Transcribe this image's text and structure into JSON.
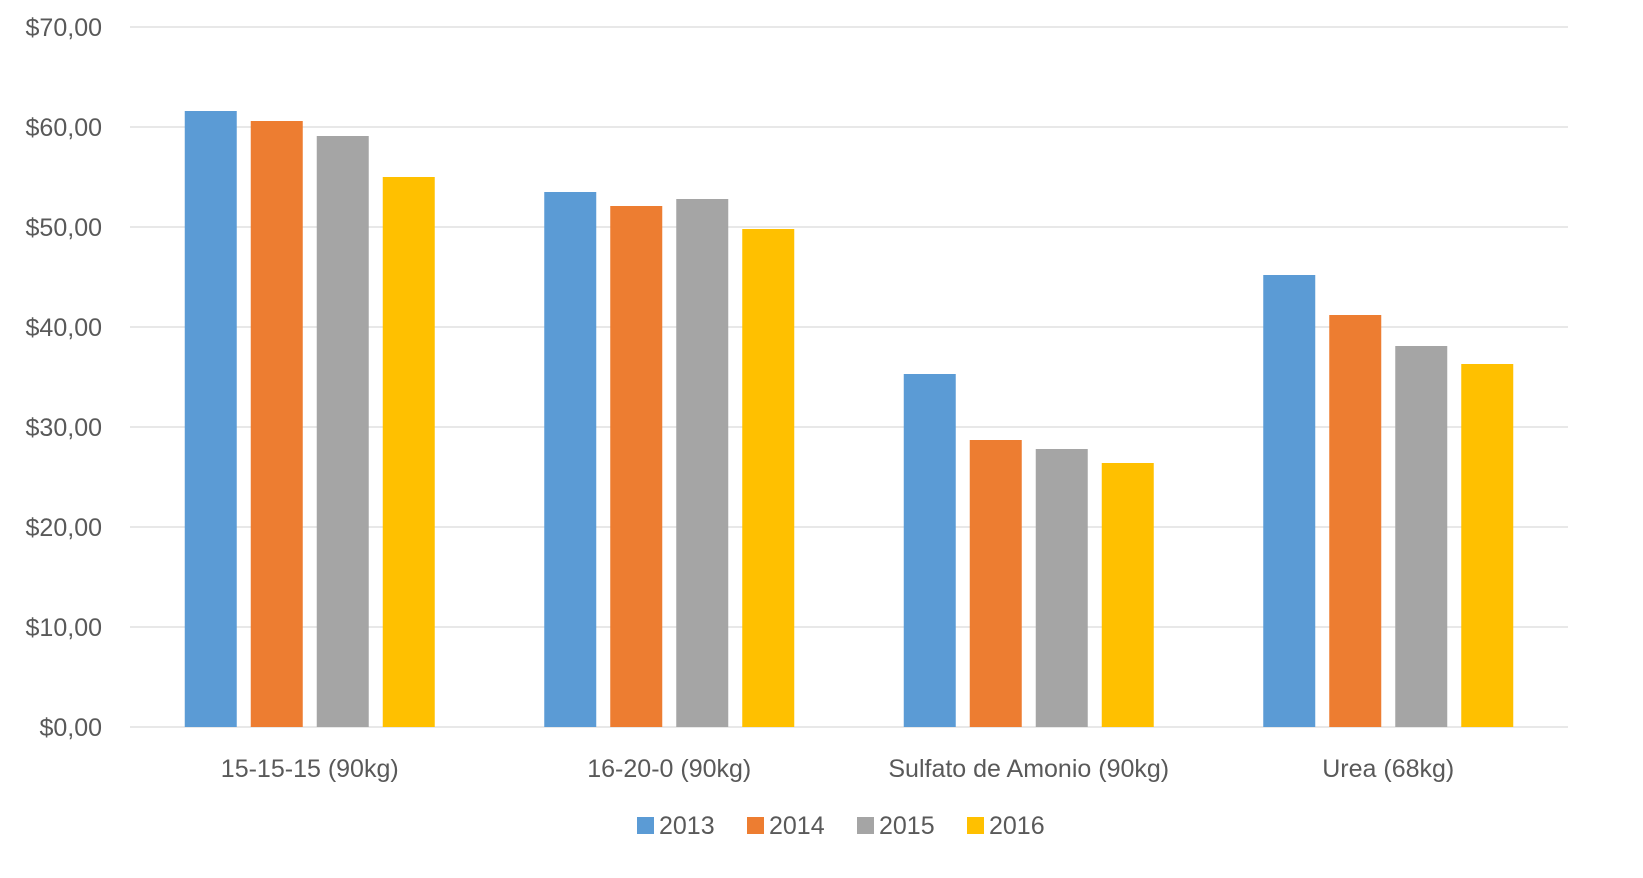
{
  "chart_data": {
    "type": "bar",
    "categories": [
      "15-15-15 (90kg)",
      "16-20-0 (90kg)",
      "Sulfato de Amonio (90kg)",
      "Urea (68kg)"
    ],
    "series": [
      {
        "name": "2013",
        "color": "#5B9BD5",
        "values": [
          61.6,
          53.5,
          35.3,
          45.2
        ]
      },
      {
        "name": "2014",
        "color": "#ED7D31",
        "values": [
          60.6,
          52.1,
          28.7,
          41.2
        ]
      },
      {
        "name": "2015",
        "color": "#A5A5A5",
        "values": [
          59.1,
          52.8,
          27.8,
          38.1
        ]
      },
      {
        "name": "2016",
        "color": "#FFC000",
        "values": [
          55.0,
          49.8,
          26.4,
          36.3
        ]
      }
    ],
    "ylim": [
      0,
      70
    ],
    "yticks": [
      0,
      10,
      20,
      30,
      40,
      50,
      60,
      70
    ],
    "ytick_labels": [
      "$0,00",
      "$10,00",
      "$20,00",
      "$30,00",
      "$40,00",
      "$50,00",
      "$60,00",
      "$70,00"
    ],
    "grid": true,
    "legend": "bottom",
    "gridline_color": "#D9D9D9"
  }
}
